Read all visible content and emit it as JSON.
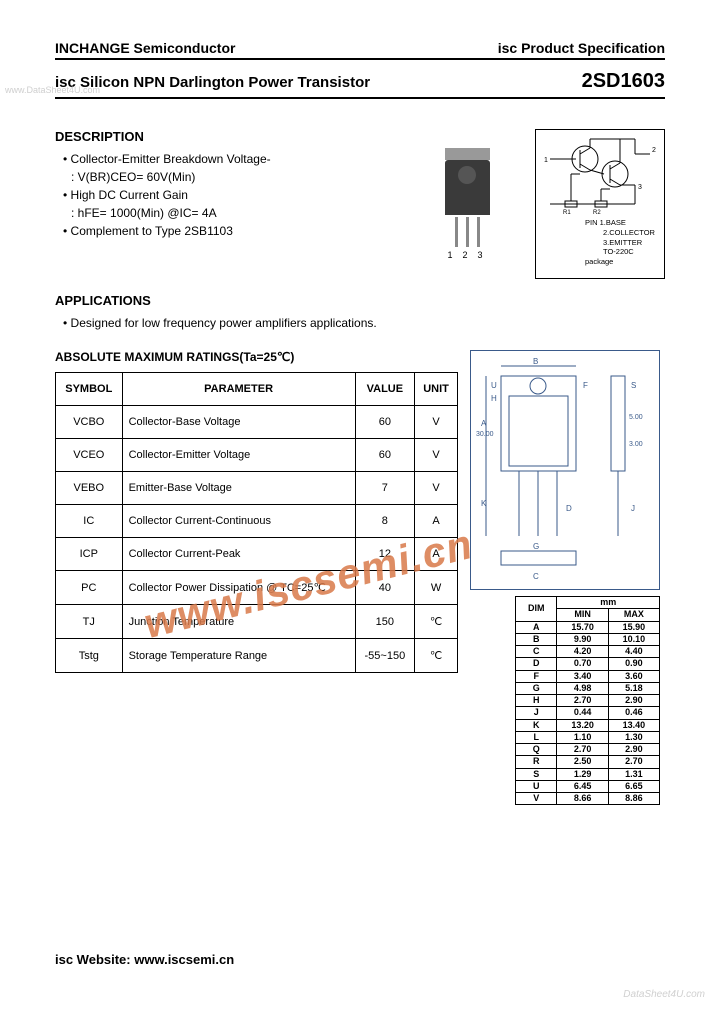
{
  "header": {
    "company": "INCHANGE Semiconductor",
    "spec": "isc Product Specification"
  },
  "title": {
    "product": "isc Silicon NPN Darlington Power Transistor",
    "part": "2SD1603"
  },
  "watermarks": {
    "left": "www.DataSheet4U.com",
    "diag": "www.iscsemi.cn",
    "br": "DataSheet4U.com"
  },
  "description": {
    "heading": "DESCRIPTION",
    "b1": "Collector-Emitter Breakdown Voltage-",
    "b1s": ": V(BR)CEO= 60V(Min)",
    "b2": "High DC Current Gain",
    "b2s": ": hFE= 1000(Min) @IC= 4A",
    "b3": "Complement to Type 2SB1103"
  },
  "schematic": {
    "pin_head": "PIN",
    "p1": "1.BASE",
    "p2": "2.COLLECTOR",
    "p3": "3.EMITTER",
    "pkg": "TO-220C package"
  },
  "apps": {
    "heading": "APPLICATIONS",
    "text": "Designed for low frequency power amplifiers applications."
  },
  "ratings": {
    "title": "ABSOLUTE MAXIMUM RATINGS(Ta=25℃)",
    "cols": {
      "c1": "SYMBOL",
      "c2": "PARAMETER",
      "c3": "VALUE",
      "c4": "UNIT"
    },
    "rows": [
      {
        "sym": "VCBO",
        "param": "Collector-Base Voltage",
        "val": "60",
        "unit": "V"
      },
      {
        "sym": "VCEO",
        "param": "Collector-Emitter Voltage",
        "val": "60",
        "unit": "V"
      },
      {
        "sym": "VEBO",
        "param": "Emitter-Base Voltage",
        "val": "7",
        "unit": "V"
      },
      {
        "sym": "IC",
        "param": "Collector Current-Continuous",
        "val": "8",
        "unit": "A"
      },
      {
        "sym": "ICP",
        "param": "Collector Current-Peak",
        "val": "12",
        "unit": "A"
      },
      {
        "sym": "PC",
        "param": "Collector Power Dissipation @ TC=25℃",
        "val": "40",
        "unit": "W"
      },
      {
        "sym": "TJ",
        "param": "Junction Temperature",
        "val": "150",
        "unit": "℃"
      },
      {
        "sym": "Tstg",
        "param": "Storage Temperature Range",
        "val": "-55~150",
        "unit": "℃"
      }
    ]
  },
  "dims": {
    "unit": "mm",
    "head": {
      "c1": "DIM",
      "c2": "MIN",
      "c3": "MAX"
    },
    "rows": [
      {
        "d": "A",
        "min": "15.70",
        "max": "15.90"
      },
      {
        "d": "B",
        "min": "9.90",
        "max": "10.10"
      },
      {
        "d": "C",
        "min": "4.20",
        "max": "4.40"
      },
      {
        "d": "D",
        "min": "0.70",
        "max": "0.90"
      },
      {
        "d": "F",
        "min": "3.40",
        "max": "3.60"
      },
      {
        "d": "G",
        "min": "4.98",
        "max": "5.18"
      },
      {
        "d": "H",
        "min": "2.70",
        "max": "2.90"
      },
      {
        "d": "J",
        "min": "0.44",
        "max": "0.46"
      },
      {
        "d": "K",
        "min": "13.20",
        "max": "13.40"
      },
      {
        "d": "L",
        "min": "1.10",
        "max": "1.30"
      },
      {
        "d": "Q",
        "min": "2.70",
        "max": "2.90"
      },
      {
        "d": "R",
        "min": "2.50",
        "max": "2.70"
      },
      {
        "d": "S",
        "min": "1.29",
        "max": "1.31"
      },
      {
        "d": "U",
        "min": "6.45",
        "max": "6.65"
      },
      {
        "d": "V",
        "min": "8.66",
        "max": "8.86"
      }
    ]
  },
  "footer": "isc Website:  www.iscsemi.cn",
  "colors": {
    "border": "#000000",
    "dim_border": "#3a5a8a",
    "watermark_gray": "#cfcfcf",
    "watermark_orange": "#d97a4a"
  }
}
